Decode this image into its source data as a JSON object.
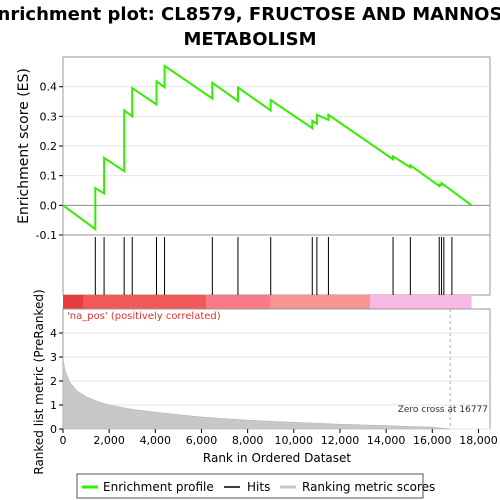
{
  "chart_data": {
    "type": "line",
    "title_line1": "Enrichment plot: CL8579, FRUCTOSE AND MANNOSE",
    "title_line2": "METABOLISM",
    "ylabel_top": "Enrichment score (ES)",
    "ylabel_bottom": "Ranked list metric (PreRanked)",
    "xlabel": "Rank in Ordered Dataset",
    "xlim": [
      0,
      18500
    ],
    "es_ylim": [
      -0.1,
      0.5
    ],
    "metric_ylim": [
      0,
      5
    ],
    "x_ticks": [
      0,
      2000,
      4000,
      6000,
      8000,
      10000,
      12000,
      14000,
      16000,
      18000
    ],
    "x_tick_labels": [
      "0",
      "2,000",
      "4,000",
      "6,000",
      "8,000",
      "10,000",
      "12,000",
      "14,000",
      "16,000",
      "18,000"
    ],
    "es_ticks": [
      -0.1,
      0.0,
      0.1,
      0.2,
      0.3,
      0.4
    ],
    "es_tick_labels": [
      "-0.1",
      "0.0",
      "0.1",
      "0.2",
      "0.3",
      "0.4"
    ],
    "metric_ticks": [
      0,
      1,
      2,
      3,
      4
    ],
    "metric_tick_labels": [
      "0",
      "1",
      "2",
      "3",
      "4"
    ],
    "pos_label": "'na_pos' (positively correlated)",
    "zero_cross_label": "Zero cross at 16777",
    "zero_cross": 16777,
    "total": 17700,
    "es_points": [
      [
        0,
        0.0
      ],
      [
        1400,
        -0.08
      ],
      [
        1400,
        0.058
      ],
      [
        1780,
        0.04
      ],
      [
        1780,
        0.16
      ],
      [
        2650,
        0.115
      ],
      [
        2650,
        0.32
      ],
      [
        3000,
        0.3
      ],
      [
        3000,
        0.395
      ],
      [
        4050,
        0.34
      ],
      [
        4050,
        0.418
      ],
      [
        4400,
        0.398
      ],
      [
        4400,
        0.47
      ],
      [
        6470,
        0.36
      ],
      [
        6470,
        0.413
      ],
      [
        7580,
        0.352
      ],
      [
        7580,
        0.397
      ],
      [
        9000,
        0.32
      ],
      [
        9000,
        0.355
      ],
      [
        10800,
        0.26
      ],
      [
        10800,
        0.285
      ],
      [
        11000,
        0.275
      ],
      [
        11000,
        0.305
      ],
      [
        11500,
        0.288
      ],
      [
        11500,
        0.305
      ],
      [
        14300,
        0.155
      ],
      [
        14300,
        0.165
      ],
      [
        15050,
        0.128
      ],
      [
        15050,
        0.135
      ],
      [
        16300,
        0.065
      ],
      [
        16300,
        0.07
      ],
      [
        16400,
        0.068
      ],
      [
        16400,
        0.075
      ],
      [
        17700,
        0.0
      ]
    ],
    "hits": [
      1400,
      1780,
      2650,
      3000,
      4050,
      4400,
      6470,
      7580,
      9000,
      10800,
      11000,
      11500,
      14300,
      15050,
      16300,
      16400,
      16500,
      16850
    ],
    "heat_segments": [
      {
        "from": 0,
        "to": 900,
        "color": "#e83b3b"
      },
      {
        "from": 900,
        "to": 6200,
        "color": "#f25858"
      },
      {
        "from": 6200,
        "to": 9000,
        "color": "#f77a85"
      },
      {
        "from": 9000,
        "to": 13300,
        "color": "#f99393"
      },
      {
        "from": 13300,
        "to": 17700,
        "color": "#f7b8e4"
      }
    ],
    "metric_curve": [
      [
        0,
        2.9
      ],
      [
        100,
        2.4
      ],
      [
        300,
        1.95
      ],
      [
        600,
        1.6
      ],
      [
        1000,
        1.35
      ],
      [
        1500,
        1.15
      ],
      [
        2000,
        1.0
      ],
      [
        3000,
        0.82
      ],
      [
        4000,
        0.7
      ],
      [
        5000,
        0.6
      ],
      [
        6000,
        0.5
      ],
      [
        7000,
        0.43
      ],
      [
        8000,
        0.37
      ],
      [
        9000,
        0.32
      ],
      [
        10000,
        0.28
      ],
      [
        11000,
        0.24
      ],
      [
        12000,
        0.2
      ],
      [
        13000,
        0.17
      ],
      [
        14000,
        0.14
      ],
      [
        15000,
        0.11
      ],
      [
        16000,
        0.08
      ],
      [
        16777,
        0.0
      ]
    ],
    "legend": [
      "Enrichment profile",
      "Hits",
      "Ranking metric scores"
    ],
    "colors": {
      "es_line": "#33ee00",
      "hits": "#000000",
      "metric": "#c8c8c8",
      "zero_cross_line": "#aaaaaa",
      "zero_line": "#909090"
    }
  }
}
